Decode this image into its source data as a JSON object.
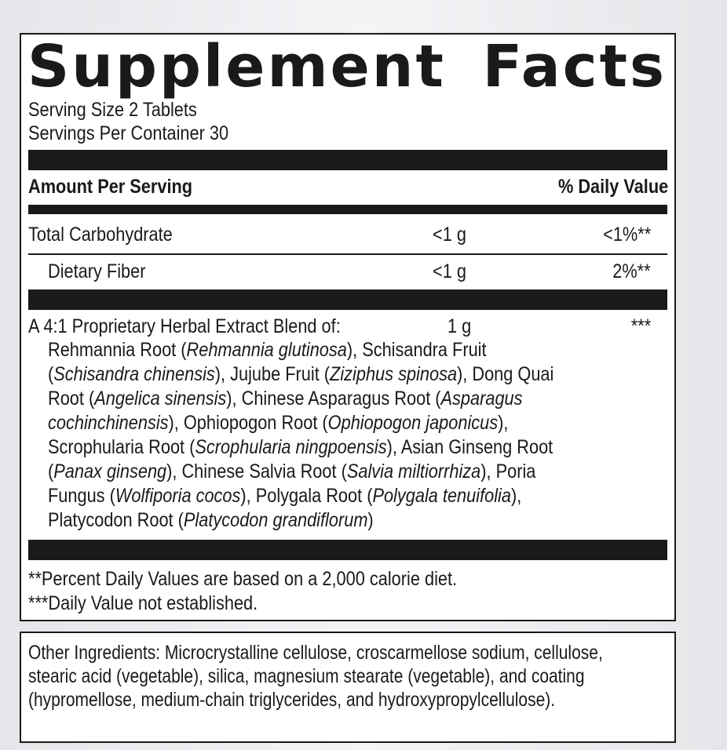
{
  "title": "Supplement Facts",
  "serving_size": "Serving Size 2 Tablets",
  "servings_per_container": "Servings Per Container 30",
  "header": {
    "amount": "Amount Per Serving",
    "dv": "% Daily Value"
  },
  "nutrients": [
    {
      "name": "Total Carbohydrate",
      "amount": "<1 g",
      "dv": "<1%**"
    },
    {
      "name": "Dietary Fiber",
      "amount": "<1 g",
      "dv": "2%**"
    }
  ],
  "blend": {
    "name": "A 4:1 Proprietary Herbal Extract Blend of:",
    "amount": "1 g",
    "dv": "***",
    "lines": [
      [
        {
          "t": "Rehmannia Root ("
        },
        {
          "t": "Rehmannia glutinosa",
          "i": true
        },
        {
          "t": "), Schisandra Fruit"
        }
      ],
      [
        {
          "t": "("
        },
        {
          "t": "Schisandra chinensis",
          "i": true
        },
        {
          "t": "), Jujube Fruit ("
        },
        {
          "t": "Ziziphus spinosa",
          "i": true
        },
        {
          "t": "), Dong Quai"
        }
      ],
      [
        {
          "t": "Root ("
        },
        {
          "t": "Angelica sinensis",
          "i": true
        },
        {
          "t": "), Chinese Asparagus Root ("
        },
        {
          "t": "Asparagus",
          "i": true
        }
      ],
      [
        {
          "t": "cochinchinensis",
          "i": true
        },
        {
          "t": "), Ophiopogon Root ("
        },
        {
          "t": "Ophiopogon japonicus",
          "i": true
        },
        {
          "t": "),"
        }
      ],
      [
        {
          "t": "Scrophularia Root ("
        },
        {
          "t": "Scrophularia ningpoensis",
          "i": true
        },
        {
          "t": "), Asian Ginseng Root"
        }
      ],
      [
        {
          "t": "("
        },
        {
          "t": "Panax ginseng",
          "i": true
        },
        {
          "t": "), Chinese Salvia Root ("
        },
        {
          "t": "Salvia miltiorrhiza",
          "i": true
        },
        {
          "t": "), Poria"
        }
      ],
      [
        {
          "t": "Fungus ("
        },
        {
          "t": "Wolfiporia cocos",
          "i": true
        },
        {
          "t": "), Polygala Root ("
        },
        {
          "t": "Polygala tenuifolia",
          "i": true
        },
        {
          "t": "),"
        }
      ],
      [
        {
          "t": "Platycodon Root ("
        },
        {
          "t": "Platycodon grandiflorum",
          "i": true
        },
        {
          "t": ")"
        }
      ]
    ]
  },
  "footnotes": [
    " **Percent Daily Values are based on a 2,000 calorie diet.",
    "***Daily Value not established."
  ],
  "other_ingredients": [
    "Other Ingredients: Microcrystalline cellulose, croscarmellose sodium, cellulose,",
    "stearic acid (vegetable), silica, magnesium stearate (vegetable), and coating",
    "(hypromellose, medium-chain triglycerides, and hydroxypropylcellulose)."
  ]
}
